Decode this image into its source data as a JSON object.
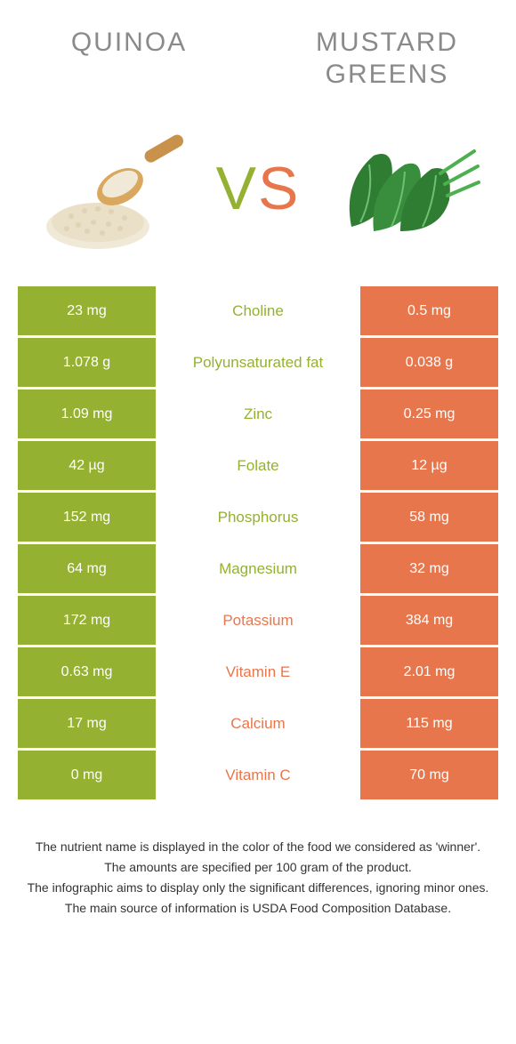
{
  "colors": {
    "left": "#94b131",
    "right": "#e8764d",
    "title_grey": "#8a8a8a"
  },
  "foods": {
    "left": "Quinoa",
    "right": "Mustard Greens"
  },
  "vs": "VS",
  "nutrients": [
    {
      "name": "Choline",
      "left": "23 mg",
      "right": "0.5 mg",
      "winner": "left"
    },
    {
      "name": "Polyunsaturated fat",
      "left": "1.078 g",
      "right": "0.038 g",
      "winner": "left"
    },
    {
      "name": "Zinc",
      "left": "1.09 mg",
      "right": "0.25 mg",
      "winner": "left"
    },
    {
      "name": "Folate",
      "left": "42 µg",
      "right": "12 µg",
      "winner": "left"
    },
    {
      "name": "Phosphorus",
      "left": "152 mg",
      "right": "58 mg",
      "winner": "left"
    },
    {
      "name": "Magnesium",
      "left": "64 mg",
      "right": "32 mg",
      "winner": "left"
    },
    {
      "name": "Potassium",
      "left": "172 mg",
      "right": "384 mg",
      "winner": "right"
    },
    {
      "name": "Vitamin E",
      "left": "0.63 mg",
      "right": "2.01 mg",
      "winner": "right"
    },
    {
      "name": "Calcium",
      "left": "17 mg",
      "right": "115 mg",
      "winner": "right"
    },
    {
      "name": "Vitamin C",
      "left": "0 mg",
      "right": "70 mg",
      "winner": "right"
    }
  ],
  "footnotes": [
    "The nutrient name is displayed in the color of the food we considered as 'winner'.",
    "The amounts are specified per 100 gram of the product.",
    "The infographic aims to display only the significant differences, ignoring minor ones.",
    "The main source of information is USDA Food Composition Database."
  ]
}
